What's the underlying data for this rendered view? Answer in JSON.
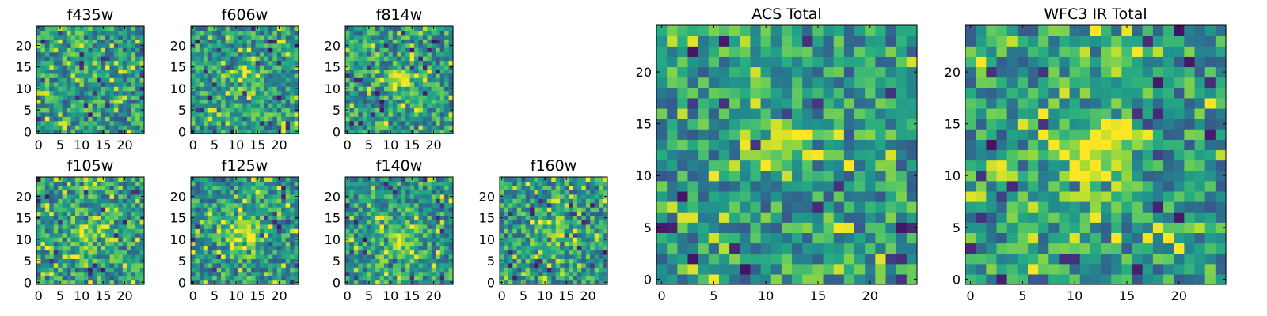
{
  "chart_data": {
    "type": "heatmap",
    "colormap": "viridis",
    "colors": {
      "low": "#440154",
      "mid": "#21918c",
      "high": "#fde725"
    },
    "panels": [
      {
        "title": "f435w",
        "grid": 25,
        "origin": "lower",
        "xticks": [
          0,
          5,
          10,
          15,
          20
        ],
        "yticks": [
          0,
          5,
          10,
          15,
          20
        ],
        "xlim": [
          0,
          24
        ],
        "ylim": [
          0,
          24
        ],
        "blob_center": [
          12,
          12
        ],
        "blob_strength": 0.05,
        "blob_sigma": 3
      },
      {
        "title": "f606w",
        "grid": 25,
        "origin": "lower",
        "xticks": [
          0,
          5,
          10,
          15,
          20
        ],
        "yticks": [
          0,
          5,
          10,
          15,
          20
        ],
        "xlim": [
          0,
          24
        ],
        "ylim": [
          0,
          24
        ],
        "blob_center": [
          13,
          12
        ],
        "blob_strength": 0.3,
        "blob_sigma": 2.2
      },
      {
        "title": "f814w",
        "grid": 25,
        "origin": "lower",
        "xticks": [
          0,
          5,
          10,
          15,
          20
        ],
        "yticks": [
          0,
          5,
          10,
          15,
          20
        ],
        "xlim": [
          0,
          24
        ],
        "ylim": [
          0,
          24
        ],
        "blob_center": [
          13,
          12
        ],
        "blob_strength": 0.35,
        "blob_sigma": 2.2
      },
      {
        "title": "f105w",
        "grid": 25,
        "origin": "lower",
        "xticks": [
          0,
          5,
          10,
          15,
          20
        ],
        "yticks": [
          0,
          5,
          10,
          15,
          20
        ],
        "xlim": [
          0,
          24
        ],
        "ylim": [
          0,
          24
        ],
        "blob_center": [
          12,
          12
        ],
        "blob_strength": 0.3,
        "blob_sigma": 3
      },
      {
        "title": "f125w",
        "grid": 25,
        "origin": "lower",
        "xticks": [
          0,
          5,
          10,
          15,
          20
        ],
        "yticks": [
          0,
          5,
          10,
          15,
          20
        ],
        "xlim": [
          0,
          24
        ],
        "ylim": [
          0,
          24
        ],
        "blob_center": [
          12,
          11
        ],
        "blob_strength": 0.35,
        "blob_sigma": 3
      },
      {
        "title": "f140w",
        "grid": 25,
        "origin": "lower",
        "xticks": [
          0,
          5,
          10,
          15,
          20
        ],
        "yticks": [
          0,
          5,
          10,
          15,
          20
        ],
        "xlim": [
          0,
          24
        ],
        "ylim": [
          0,
          24
        ],
        "blob_center": [
          12,
          10
        ],
        "blob_strength": 0.35,
        "blob_sigma": 3
      },
      {
        "title": "f160w",
        "grid": 25,
        "origin": "lower",
        "xticks": [
          0,
          5,
          10,
          15,
          20
        ],
        "yticks": [
          0,
          5,
          10,
          15,
          20
        ],
        "xlim": [
          0,
          24
        ],
        "ylim": [
          0,
          24
        ],
        "blob_center": [
          12,
          11
        ],
        "blob_strength": 0.2,
        "blob_sigma": 3
      },
      {
        "title": "ACS Total",
        "grid": 25,
        "origin": "lower",
        "xticks": [
          0,
          5,
          10,
          15,
          20
        ],
        "yticks": [
          0,
          5,
          10,
          15,
          20
        ],
        "xlim": [
          0,
          24
        ],
        "ylim": [
          0,
          24
        ],
        "blob_center": [
          12.5,
          12.5
        ],
        "blob_strength": 0.5,
        "blob_sigma": 1.8
      },
      {
        "title": "WFC3 IR Total",
        "grid": 25,
        "origin": "lower",
        "xticks": [
          0,
          5,
          10,
          15,
          20
        ],
        "yticks": [
          0,
          5,
          10,
          15,
          20
        ],
        "xlim": [
          0,
          24
        ],
        "ylim": [
          0,
          24
        ],
        "blob_center": [
          12,
          12
        ],
        "blob_strength": 0.45,
        "blob_sigma": 2.5
      }
    ]
  }
}
